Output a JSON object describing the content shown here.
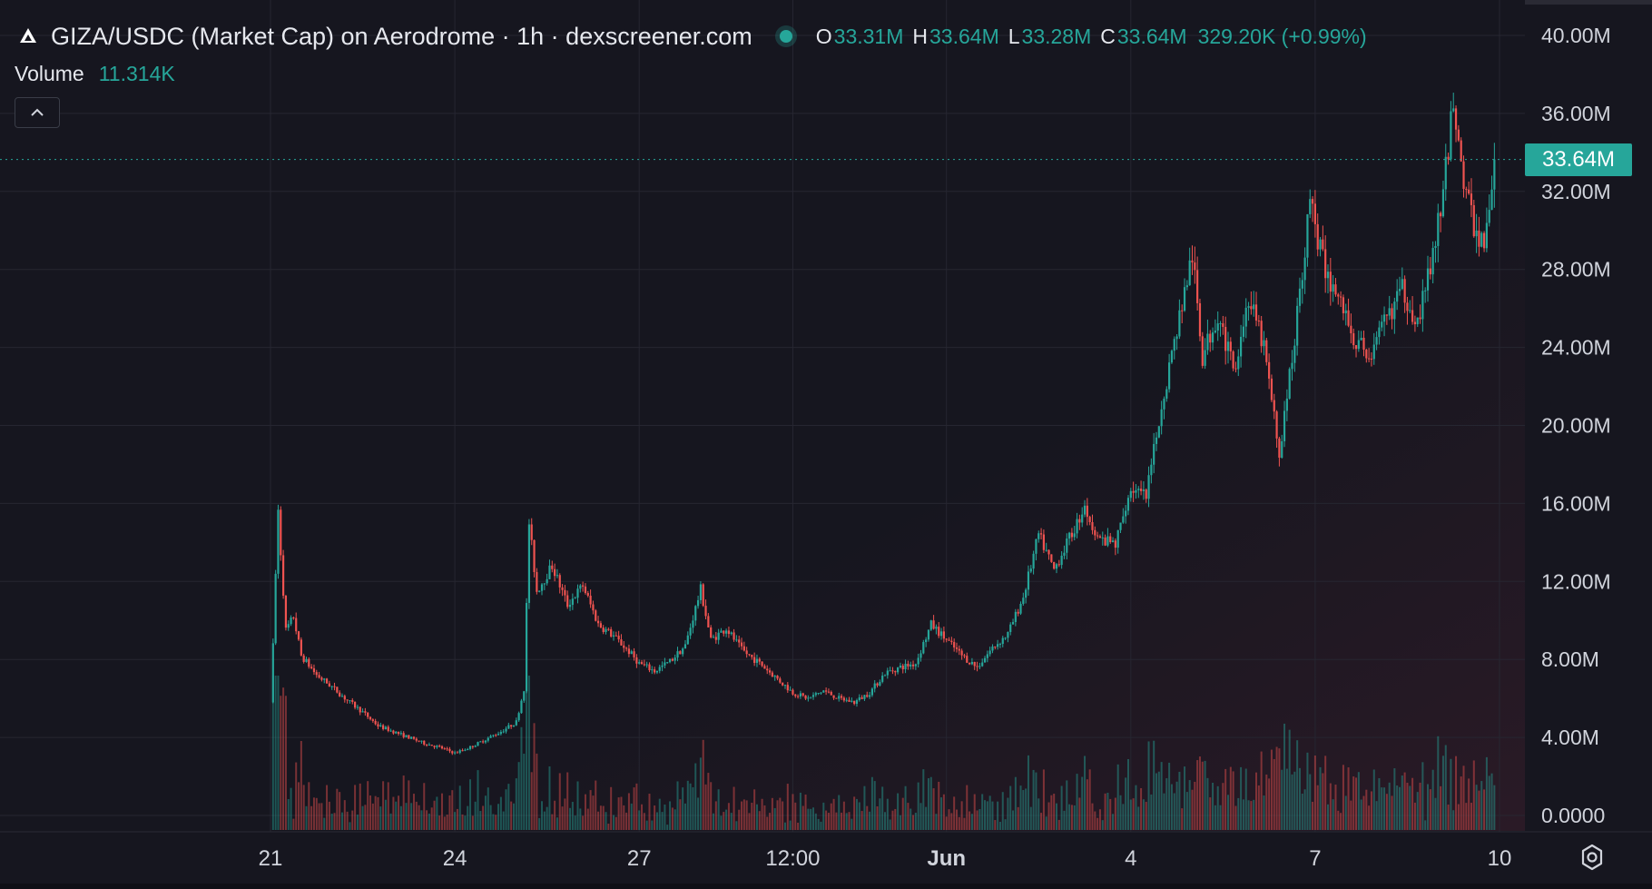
{
  "header": {
    "title": "GIZA/USDC (Market Cap) on Aerodrome · 1h · dexscreener.com",
    "open_label": "O",
    "open_value": "33.31M",
    "high_label": "H",
    "high_value": "33.64M",
    "low_label": "L",
    "low_value": "33.28M",
    "close_label": "C",
    "close_value": "33.64M",
    "change_value": "329.20K (+0.99%)",
    "volume_label": "Volume",
    "volume_value": "11.314K",
    "live_dot_color": "#26a69a",
    "logo_icon": "aerodrome-logo-icon"
  },
  "price_tag": {
    "value": "33.64M"
  },
  "colors": {
    "up": "#26a69a",
    "down": "#ef5350",
    "background": "#16161f",
    "grid": "#262631",
    "axis_text": "#d1d4dc"
  },
  "chart_data": {
    "type": "candlestick",
    "title": "",
    "xlabel": "",
    "ylabel": "",
    "ylim": [
      0,
      40000000
    ],
    "grid": true,
    "price_axis_labels": [
      "40.00M",
      "36.00M",
      "32.00M",
      "28.00M",
      "24.00M",
      "20.00M",
      "16.00M",
      "12.00M",
      "8.00M",
      "4.00M",
      "0.0000"
    ],
    "price_axis_values": [
      40000000,
      36000000,
      32000000,
      28000000,
      24000000,
      20000000,
      16000000,
      12000000,
      8000000,
      4000000,
      0
    ],
    "time_axis_labels": [
      "21",
      "24",
      "27",
      "12:00",
      "Jun",
      "4",
      "7",
      "10"
    ],
    "last_price": 33640000,
    "series": [
      {
        "name": "",
        "close_path": [
          [
            "May 21 00:00",
            5800000
          ],
          [
            "May 21 03:00",
            15500000
          ],
          [
            "May 21 06:00",
            9500000
          ],
          [
            "May 21 09:00",
            10200000
          ],
          [
            "May 21 12:00",
            8200000
          ],
          [
            "May 21 18:00",
            7200000
          ],
          [
            "May 22 00:00",
            6600000
          ],
          [
            "May 22 06:00",
            5900000
          ],
          [
            "May 22 12:00",
            5300000
          ],
          [
            "May 22 18:00",
            4600000
          ],
          [
            "May 23 00:00",
            4300000
          ],
          [
            "May 23 06:00",
            4000000
          ],
          [
            "May 23 12:00",
            3700000
          ],
          [
            "May 23 18:00",
            3500000
          ],
          [
            "May 24 00:00",
            3200000
          ],
          [
            "May 24 06:00",
            3500000
          ],
          [
            "May 24 12:00",
            3900000
          ],
          [
            "May 24 18:00",
            4300000
          ],
          [
            "May 25 00:00",
            4800000
          ],
          [
            "May 25 03:00",
            6500000
          ],
          [
            "May 25 05:00",
            15000000
          ],
          [
            "May 25 08:00",
            11500000
          ],
          [
            "May 25 14:00",
            12800000
          ],
          [
            "May 25 20:00",
            10800000
          ],
          [
            "May 26 02:00",
            11800000
          ],
          [
            "May 26 08:00",
            9800000
          ],
          [
            "May 26 14:00",
            9200000
          ],
          [
            "May 26 20:00",
            8400000
          ],
          [
            "May 27 00:00",
            7800000
          ],
          [
            "May 27 06:00",
            7400000
          ],
          [
            "May 27 12:00",
            7900000
          ],
          [
            "May 27 18:00",
            8700000
          ],
          [
            "May 28 00:00",
            11600000
          ],
          [
            "May 28 04:00",
            9000000
          ],
          [
            "May 28 10:00",
            9600000
          ],
          [
            "May 28 16:00",
            8500000
          ],
          [
            "May 29 00:00",
            7700000
          ],
          [
            "May 29 06:00",
            7000000
          ],
          [
            "May 29 12:00",
            6300000
          ],
          [
            "May 29 18:00",
            6000000
          ],
          [
            "May 30 00:00",
            6400000
          ],
          [
            "May 30 06:00",
            6000000
          ],
          [
            "May 30 12:00",
            5800000
          ],
          [
            "May 30 18:00",
            6300000
          ],
          [
            "May 31 00:00",
            7300000
          ],
          [
            "May 31 06:00",
            7600000
          ],
          [
            "May 31 12:00",
            7800000
          ],
          [
            "May 31 18:00",
            9800000
          ],
          [
            "Jun 1 00:00",
            9000000
          ],
          [
            "Jun 1 06:00",
            8200000
          ],
          [
            "Jun 1 12:00",
            7600000
          ],
          [
            "Jun 1 18:00",
            8600000
          ],
          [
            "Jun 2 00:00",
            9300000
          ],
          [
            "Jun 2 06:00",
            11200000
          ],
          [
            "Jun 2 12:00",
            14400000
          ],
          [
            "Jun 2 18:00",
            12600000
          ],
          [
            "Jun 3 00:00",
            14200000
          ],
          [
            "Jun 3 06:00",
            15800000
          ],
          [
            "Jun 3 12:00",
            14100000
          ],
          [
            "Jun 3 18:00",
            13900000
          ],
          [
            "Jun 4 00:00",
            16800000
          ],
          [
            "Jun 4 06:00",
            16300000
          ],
          [
            "Jun 4 12:00",
            21000000
          ],
          [
            "Jun 4 18:00",
            25000000
          ],
          [
            "Jun 5 00:00",
            28700000
          ],
          [
            "Jun 5 04:00",
            23500000
          ],
          [
            "Jun 5 10:00",
            25800000
          ],
          [
            "Jun 5 16:00",
            22800000
          ],
          [
            "Jun 5 22:00",
            26500000
          ],
          [
            "Jun 6 04:00",
            24000000
          ],
          [
            "Jun 6 10:00",
            18500000
          ],
          [
            "Jun 6 16:00",
            24500000
          ],
          [
            "Jun 6 22:00",
            31500000
          ],
          [
            "Jun 7 04:00",
            27800000
          ],
          [
            "Jun 7 10:00",
            26300000
          ],
          [
            "Jun 7 16:00",
            24200000
          ],
          [
            "Jun 7 22:00",
            23600000
          ],
          [
            "Jun 8 04:00",
            25500000
          ],
          [
            "Jun 8 10:00",
            27000000
          ],
          [
            "Jun 8 16:00",
            25300000
          ],
          [
            "Jun 8 22:00",
            28700000
          ],
          [
            "Jun 9 02:00",
            31800000
          ],
          [
            "Jun 9 06:00",
            36800000
          ],
          [
            "Jun 9 10:00",
            32500000
          ],
          [
            "Jun 9 14:00",
            30200000
          ],
          [
            "Jun 9 18:00",
            29200000
          ],
          [
            "Jun 9 22:00",
            33640000
          ]
        ]
      }
    ]
  }
}
